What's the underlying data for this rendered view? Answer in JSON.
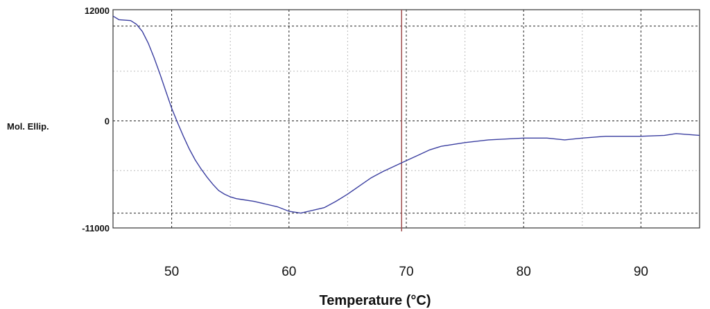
{
  "chart_data": {
    "type": "line",
    "xlabel": "Temperature (°C)",
    "ylabel": "Mol. Ellip.",
    "xlim": [
      45,
      95
    ],
    "ylim": [
      -11000,
      12000
    ],
    "x_ticks": [
      50,
      60,
      70,
      80,
      90
    ],
    "y_ticks": [
      12000,
      0,
      -11000
    ],
    "grid": true,
    "marker_line": {
      "x": 69.6,
      "color": "#a05050"
    },
    "series": [
      {
        "color": "#3a3ea0",
        "x": [
          45.0,
          45.5,
          46.5,
          47.0,
          47.5,
          48.0,
          48.5,
          49.0,
          49.5,
          50.0,
          50.5,
          51.0,
          51.5,
          52.0,
          52.5,
          53.0,
          53.5,
          54.0,
          54.5,
          55.0,
          55.5,
          56.0,
          57.0,
          58.0,
          59.0,
          60.0,
          61.0,
          62.0,
          63.0,
          64.0,
          65.0,
          66.0,
          67.0,
          68.0,
          69.0,
          70.0,
          71.0,
          72.0,
          73.0,
          75.0,
          77.0,
          80.0,
          82.0,
          83.5,
          85.0,
          87.0,
          90.0,
          92.0,
          93.0,
          95.0
        ],
        "values": [
          11600,
          11200,
          11100,
          10700,
          9900,
          8600,
          7000,
          5200,
          3300,
          1400,
          -200,
          -1700,
          -3100,
          -4300,
          -5300,
          -6200,
          -7000,
          -7700,
          -8100,
          -8400,
          -8600,
          -8700,
          -8900,
          -9200,
          -9500,
          -10000,
          -10200,
          -9900,
          -9600,
          -8900,
          -8100,
          -7200,
          -6300,
          -5600,
          -5000,
          -4400,
          -3800,
          -3200,
          -2800,
          -2400,
          -2100,
          -1900,
          -1900,
          -2100,
          -1900,
          -1700,
          -1700,
          -1600,
          -1400,
          -1600
        ]
      }
    ]
  }
}
